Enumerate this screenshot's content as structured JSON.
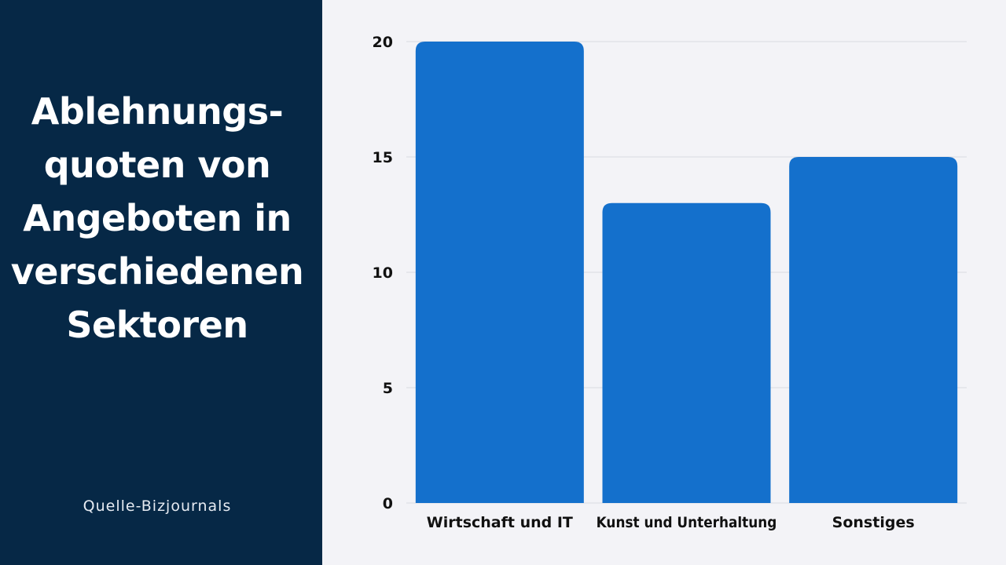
{
  "sidebar": {
    "title": "Ablehnungs-\nquoten von\nAngeboten in\nverschiedenen\nSektoren",
    "source": "Quelle-Bizjournals"
  },
  "colors": {
    "sidebar_background": "#062846",
    "chart_background": "#f3f3f7",
    "bar_color": "#1470cc",
    "gridline_color": "#dadbe2"
  },
  "chart_data": {
    "type": "bar",
    "categories": [
      "Wirtschaft und IT",
      "Kunst und Unterhaltung",
      "Sonstiges"
    ],
    "values": [
      20,
      13,
      15
    ],
    "title": "Ablehnungs-quoten von Angeboten in verschiedenen Sektoren",
    "xlabel": "",
    "ylabel": "",
    "ylim": [
      0,
      20
    ],
    "yticks": [
      0,
      5,
      10,
      15,
      20
    ],
    "grid": true,
    "legend": "none"
  }
}
